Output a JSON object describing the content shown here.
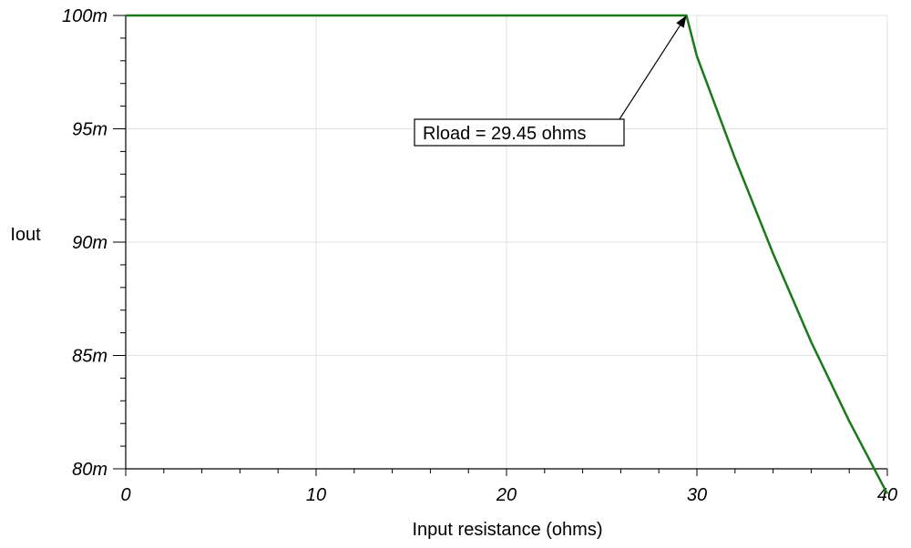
{
  "chart_data": {
    "type": "line",
    "xlabel": "Input resistance (ohms)",
    "ylabel": "Iout",
    "xlim": [
      0,
      40
    ],
    "ylim": [
      0.08,
      0.1
    ],
    "x_ticks": [
      0,
      10,
      20,
      30,
      40
    ],
    "x_tick_labels": [
      "0",
      "10",
      "20",
      "30",
      "40"
    ],
    "y_ticks": [
      0.08,
      0.085,
      0.09,
      0.095,
      0.1
    ],
    "y_tick_labels": [
      "80m",
      "85m",
      "90m",
      "95m",
      "100m"
    ],
    "grid": true,
    "series": [
      {
        "color": "#1a7a1a",
        "x": [
          0,
          29.45,
          30,
          32,
          34,
          36,
          38,
          40
        ],
        "y": [
          0.1,
          0.1,
          0.0982,
          0.0937,
          0.0895,
          0.0856,
          0.0821,
          0.0789
        ]
      }
    ],
    "annotation": {
      "text": "Rload = 29.45 ohms",
      "point": [
        29.45,
        0.1
      ]
    }
  }
}
